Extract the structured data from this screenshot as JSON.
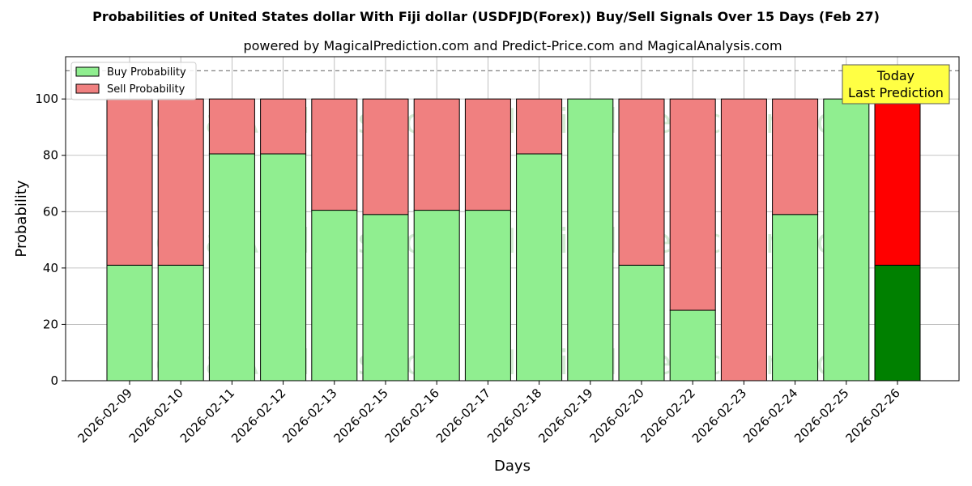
{
  "chart_data": {
    "type": "bar",
    "stacked": true,
    "title": "Probabilities of United States dollar With Fiji dollar (USDFJD(Forex)) Buy/Sell Signals Over 15 Days (Feb 27)",
    "subtitle": "powered by MagicalPrediction.com and Predict-Price.com and MagicalAnalysis.com",
    "xlabel": "Days",
    "ylabel": "Probability",
    "ylim": [
      0,
      115
    ],
    "yticks": [
      0,
      20,
      40,
      60,
      80,
      100
    ],
    "reference_line": 110,
    "grid": true,
    "legend_position": "top-left",
    "categories": [
      "2026-02-09",
      "2026-02-10",
      "2026-02-11",
      "2026-02-12",
      "2026-02-13",
      "2026-02-15",
      "2026-02-16",
      "2026-02-17",
      "2026-02-18",
      "2026-02-19",
      "2026-02-20",
      "2026-02-22",
      "2026-02-23",
      "2026-02-24",
      "2026-02-25",
      "2026-02-26"
    ],
    "series": [
      {
        "name": "Buy Probability",
        "color": "#90ee90",
        "highlight_color": "#008000",
        "values": [
          41,
          41,
          80.5,
          80.5,
          60.5,
          59,
          60.5,
          60.5,
          80.5,
          100,
          41,
          25,
          0,
          59,
          100,
          41
        ]
      },
      {
        "name": "Sell Probability",
        "color": "#f08080",
        "highlight_color": "#ff0000",
        "values": [
          59,
          59,
          19.5,
          19.5,
          39.5,
          41,
          39.5,
          39.5,
          19.5,
          0,
          59,
          75,
          100,
          41,
          0,
          59
        ]
      }
    ],
    "highlight_index": 15,
    "annotation": {
      "line1": "Today",
      "line2": "Last Prediction",
      "bg": "#ffff44"
    },
    "watermarks": [
      "MagicalAnalysis.com",
      "MagicalPrediction.com"
    ]
  }
}
